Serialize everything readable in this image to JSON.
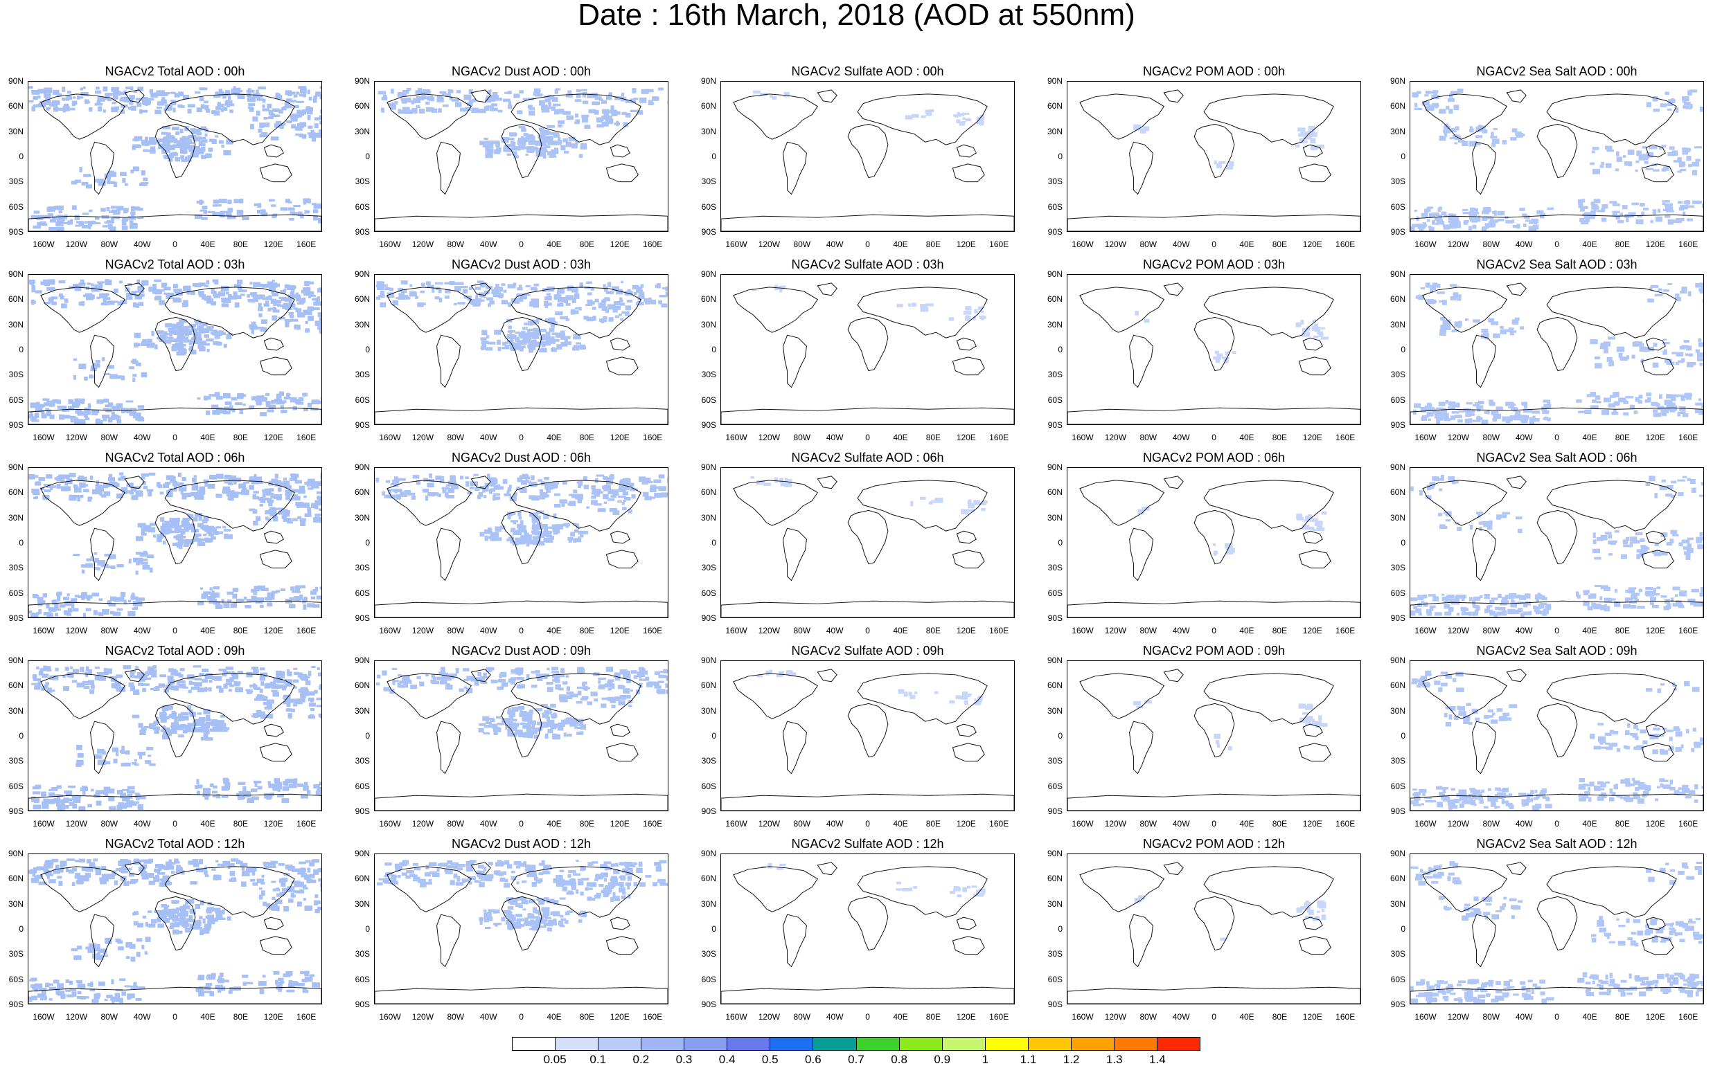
{
  "title": "Date : 16th March, 2018 (AOD at 550nm)",
  "lat_labels": [
    "90N",
    "60N",
    "30N",
    "0",
    "30S",
    "60S",
    "90S"
  ],
  "lon_labels": [
    "160W",
    "120W",
    "80W",
    "40W",
    "0",
    "40E",
    "80E",
    "120E",
    "160E"
  ],
  "species_fill": {
    "total": "#a6bff5",
    "dust": "#aac2f6",
    "sulfate": "#c8d6fa",
    "pom": "#c8d6fa",
    "seasalt": "#b0c6f7"
  },
  "panels": [
    [
      {
        "title": "NGACv2 Total AOD : 00h",
        "species": "total"
      },
      {
        "title": "NGACv2 Dust AOD : 00h",
        "species": "dust"
      },
      {
        "title": "NGACv2 Sulfate AOD : 00h",
        "species": "sulfate"
      },
      {
        "title": "NGACv2 POM AOD : 00h",
        "species": "pom"
      },
      {
        "title": "NGACv2 Sea Salt AOD : 00h",
        "species": "seasalt"
      }
    ],
    [
      {
        "title": "NGACv2 Total AOD : 03h",
        "species": "total"
      },
      {
        "title": "NGACv2 Dust AOD : 03h",
        "species": "dust"
      },
      {
        "title": "NGACv2 Sulfate AOD : 03h",
        "species": "sulfate"
      },
      {
        "title": "NGACv2 POM AOD : 03h",
        "species": "pom"
      },
      {
        "title": "NGACv2 Sea Salt AOD : 03h",
        "species": "seasalt"
      }
    ],
    [
      {
        "title": "NGACv2 Total AOD : 06h",
        "species": "total"
      },
      {
        "title": "NGACv2 Dust AOD : 06h",
        "species": "dust"
      },
      {
        "title": "NGACv2 Sulfate AOD : 06h",
        "species": "sulfate"
      },
      {
        "title": "NGACv2 POM AOD : 06h",
        "species": "pom"
      },
      {
        "title": "NGACv2 Sea Salt AOD : 06h",
        "species": "seasalt"
      }
    ],
    [
      {
        "title": "NGACv2 Total AOD : 09h",
        "species": "total"
      },
      {
        "title": "NGACv2 Dust AOD : 09h",
        "species": "dust"
      },
      {
        "title": "NGACv2 Sulfate AOD : 09h",
        "species": "sulfate"
      },
      {
        "title": "NGACv2 POM AOD : 09h",
        "species": "pom"
      },
      {
        "title": "NGACv2 Sea Salt  AOD : 09h",
        "species": "seasalt"
      }
    ],
    [
      {
        "title": "NGACv2 Total AOD  : 12h",
        "species": "total"
      },
      {
        "title": "NGACv2 Dust AOD : 12h",
        "species": "dust"
      },
      {
        "title": "NGACv2 Sulfate AOD : 12h",
        "species": "sulfate"
      },
      {
        "title": "NGACv2 POM  AOD : 12h",
        "species": "pom"
      },
      {
        "title": "NGACv2 Sea Salt AOD : 12h",
        "species": "seasalt"
      }
    ]
  ],
  "colorbar": {
    "colors": [
      "#ffffff",
      "#d4e0fb",
      "#b9cdf8",
      "#9fb5f4",
      "#8a9ef1",
      "#6a78ee",
      "#1c6ff0",
      "#099d96",
      "#3ed12d",
      "#8eea1c",
      "#c6f56e",
      "#fffe04",
      "#ffc603",
      "#ffa202",
      "#ff7a00",
      "#ff2a00"
    ],
    "labels": [
      "0.05",
      "0.1",
      "0.2",
      "0.3",
      "0.4",
      "0.5",
      "0.6",
      "0.7",
      "0.8",
      "0.9",
      "1",
      "1.1",
      "1.2",
      "1.3",
      "1.4"
    ]
  }
}
